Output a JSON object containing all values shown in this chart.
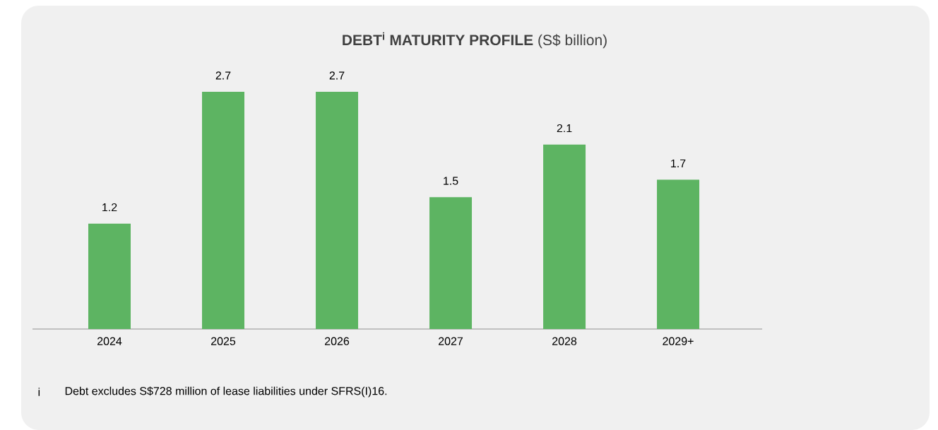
{
  "chart_data": {
    "type": "bar",
    "title": "DEBT$^{i}$ MATURITY PROFILE",
    "subtitle": "(S$ billion)",
    "categories": [
      "2024",
      "2025",
      "2026",
      "2027",
      "2028",
      "2029+"
    ],
    "values": [
      1.2,
      2.7,
      2.7,
      1.5,
      2.1,
      1.7
    ],
    "color": "#5db462",
    "data_labels": true,
    "annotations": [
      "i",
      "Debt excludes S$728 million of lease liabilities under SFRS(I)16."
    ]
  }
}
